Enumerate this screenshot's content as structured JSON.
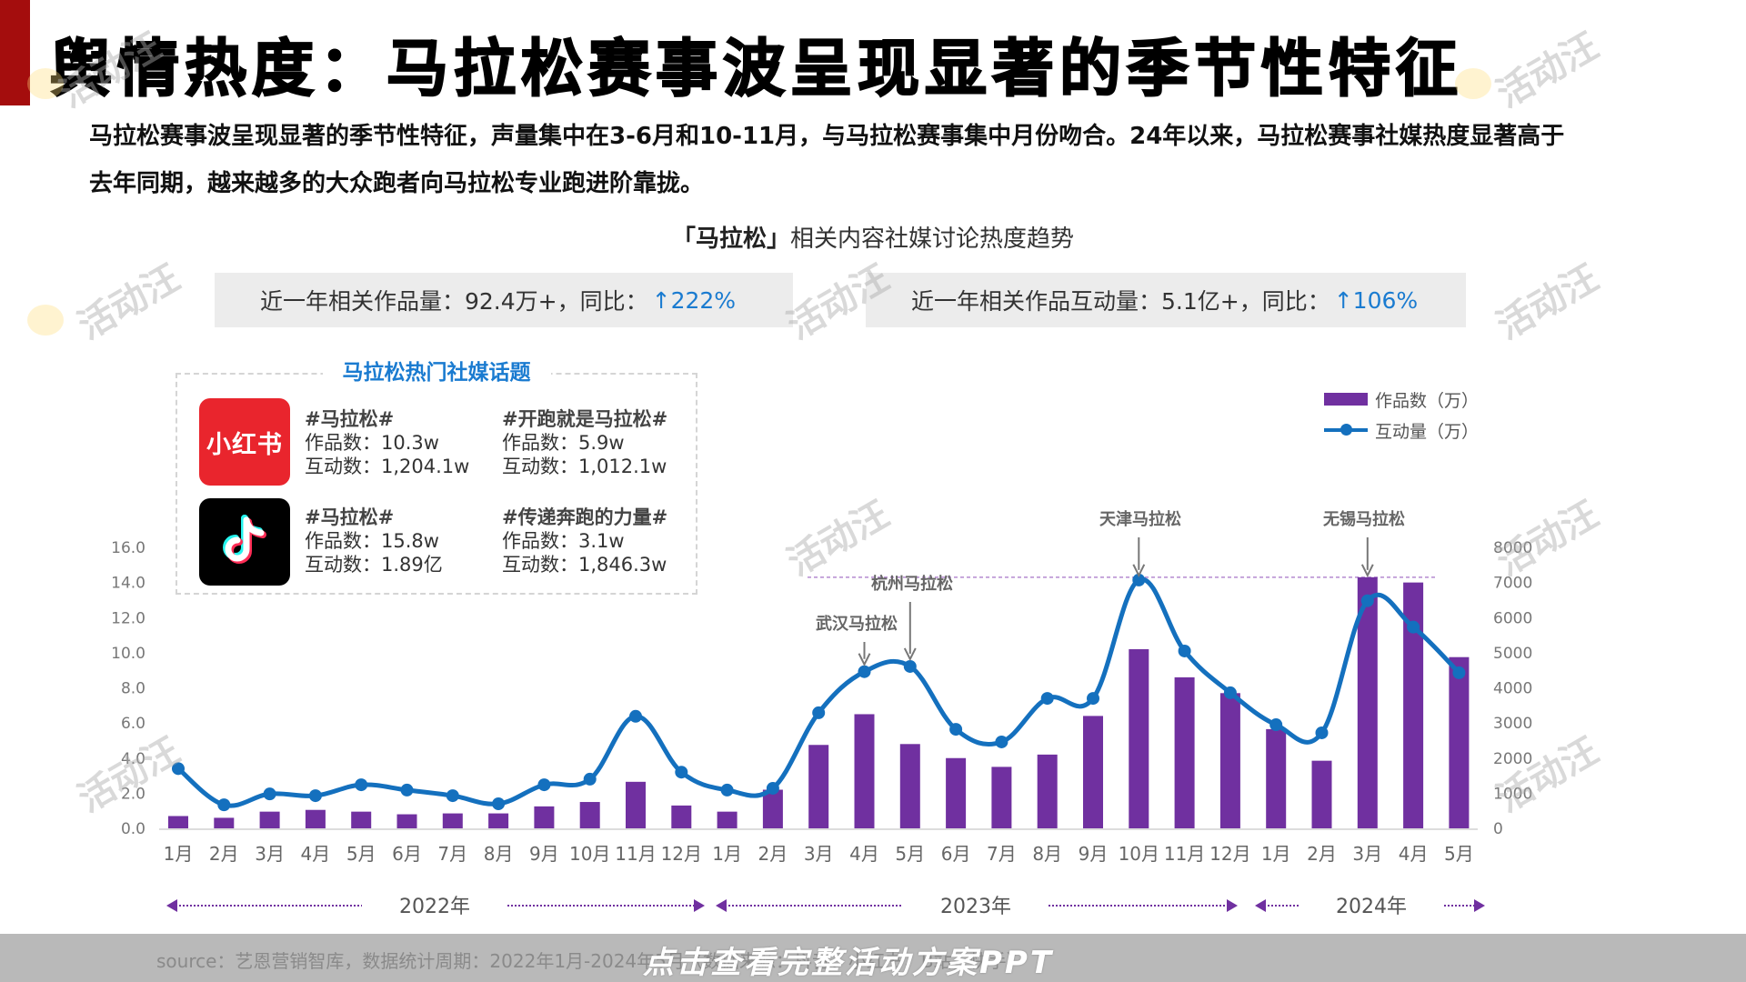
{
  "header": {
    "title": "舆情热度：马拉松赛事波呈现显著的季节性特征",
    "summary": "马拉松赛事波呈现显著的季节性特征，声量集中在3-6月和10-11月，与马拉松赛事集中月份吻合。24年以来，马拉松赛事社媒热度显著高于去年同期，越来越多的大众跑者向马拉松专业跑进阶靠拢。"
  },
  "chart_section": {
    "title_bracket": "「马拉松」",
    "title_rest": "相关内容社媒讨论热度趋势",
    "stats": [
      {
        "label": "近一年相关作品量：92.4万+，同比：",
        "value": "↑222%"
      },
      {
        "label": "近一年相关作品互动量：5.1亿+，同比：",
        "value": "↑106%"
      }
    ]
  },
  "topics_panel": {
    "title": "马拉松热门社媒话题",
    "platforms": [
      {
        "name": "小红书",
        "icon": "xiaohongshu-logo",
        "topics": [
          {
            "tag": "#马拉松#",
            "works": "作品数：10.3w",
            "interactions": "互动数：1,204.1w"
          },
          {
            "tag": "#开跑就是马拉松#",
            "works": "作品数：5.9w",
            "interactions": "互动数：1,012.1w"
          }
        ]
      },
      {
        "name": "抖音",
        "icon": "douyin-logo",
        "topics": [
          {
            "tag": "#马拉松#",
            "works": "作品数：15.8w",
            "interactions": "互动数：1.89亿"
          },
          {
            "tag": "#传递奔跑的力量#",
            "works": "作品数：3.1w",
            "interactions": "互动数：1,846.3w"
          }
        ]
      }
    ]
  },
  "legend": {
    "bar_label": "作品数（万）",
    "line_label": "互动量（万）"
  },
  "colors": {
    "bar": "#7030a0",
    "line": "#1470be",
    "accent_blue": "#1a7bd0",
    "title_red": "#a40d0d"
  },
  "chart_data": {
    "type": "bar+line",
    "title": "「马拉松」相关内容社媒讨论热度趋势",
    "categories": [
      "1月",
      "2月",
      "3月",
      "4月",
      "5月",
      "6月",
      "7月",
      "8月",
      "9月",
      "10月",
      "11月",
      "12月",
      "1月",
      "2月",
      "3月",
      "4月",
      "5月",
      "6月",
      "7月",
      "8月",
      "9月",
      "10月",
      "11月",
      "12月",
      "1月",
      "2月",
      "3月",
      "4月",
      "5月"
    ],
    "year_groups": [
      {
        "label": "2022年",
        "start": 0,
        "end": 11
      },
      {
        "label": "2023年",
        "start": 12,
        "end": 23
      },
      {
        "label": "2024年",
        "start": 24,
        "end": 28
      }
    ],
    "series": [
      {
        "name": "作品数（万）",
        "type": "bar",
        "axis": "left",
        "values": [
          0.7,
          0.6,
          0.95,
          1.05,
          0.95,
          0.8,
          0.85,
          0.85,
          1.25,
          1.5,
          2.65,
          1.3,
          0.95,
          2.2,
          4.75,
          6.5,
          4.8,
          4.0,
          3.5,
          4.2,
          6.4,
          10.2,
          8.6,
          7.7,
          5.65,
          3.85,
          14.3,
          14.0,
          9.75
        ]
      },
      {
        "name": "互动量（万）",
        "type": "line",
        "axis": "right",
        "values": [
          1700,
          670,
          980,
          930,
          1240,
          1090,
          930,
          700,
          1240,
          1400,
          3190,
          1600,
          1090,
          1140,
          3290,
          4460,
          4610,
          2820,
          2460,
          3700,
          3700,
          7070,
          5050,
          3860,
          2950,
          2720,
          6480,
          5730,
          4430
        ]
      }
    ],
    "y_left": {
      "ticks": [
        "0.0",
        "2.0",
        "4.0",
        "6.0",
        "8.0",
        "10.0",
        "12.0",
        "14.0",
        "16.0"
      ],
      "range": [
        0,
        16
      ]
    },
    "y_right": {
      "ticks": [
        "0",
        "1000",
        "2000",
        "3000",
        "4000",
        "5000",
        "6000",
        "7000",
        "8000"
      ],
      "range": [
        0,
        8000
      ]
    },
    "annotations": [
      {
        "label": "武汉马拉松",
        "index": 15
      },
      {
        "label": "杭州马拉松",
        "index": 16
      },
      {
        "label": "天津马拉松",
        "index": 21
      },
      {
        "label": "无锡马拉松",
        "index": 26
      }
    ],
    "reference_line": {
      "style": "dashed",
      "y_left": 14.3
    },
    "legend_position": "top-right",
    "grid": false
  },
  "footer": {
    "source": "source：艺恩营销智库，数据统计周期：2022年1月-2024年5月（数据来源：抖音、小红书，B站，快手）",
    "cta": "点击查看完整活动方案PPT"
  },
  "watermark": "活动汪"
}
